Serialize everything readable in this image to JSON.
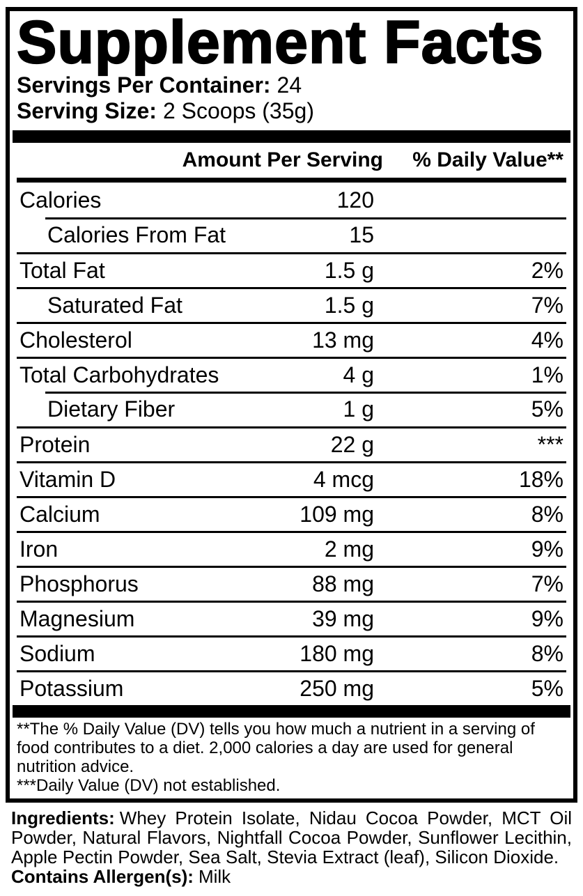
{
  "colors": {
    "ink": "#000000",
    "background": "#ffffff"
  },
  "panel": {
    "title": "Supplement Facts",
    "servings_per_container": {
      "label": "Servings Per Container:",
      "value": "24"
    },
    "serving_size": {
      "label": "Serving Size:",
      "value": "2 Scoops (35g)"
    },
    "columns": {
      "amount": "Amount Per Serving",
      "daily_value": "% Daily Value**"
    },
    "rows": [
      {
        "label": "Calories",
        "amount": "120",
        "dv": ""
      },
      {
        "label": "Calories From Fat",
        "amount": "15",
        "dv": ""
      },
      {
        "label": "Total Fat",
        "amount": "1.5 g",
        "dv": "2%"
      },
      {
        "label": "Saturated Fat",
        "amount": "1.5 g",
        "dv": "7%"
      },
      {
        "label": "Cholesterol",
        "amount": "13 mg",
        "dv": "4%"
      },
      {
        "label": "Total Carbohydrates",
        "amount": "4 g",
        "dv": "1%"
      },
      {
        "label": "Dietary Fiber",
        "amount": "1 g",
        "dv": "5%"
      },
      {
        "label": "Protein",
        "amount": "22 g",
        "dv": "***"
      },
      {
        "label": "Vitamin D",
        "amount": "4 mcg",
        "dv": "18%"
      },
      {
        "label": "Calcium",
        "amount": "109 mg",
        "dv": "8%"
      },
      {
        "label": "Iron",
        "amount": "2 mg",
        "dv": "9%"
      },
      {
        "label": "Phosphorus",
        "amount": "88 mg",
        "dv": "7%"
      },
      {
        "label": "Magnesium",
        "amount": "39 mg",
        "dv": "9%"
      },
      {
        "label": "Sodium",
        "amount": "180 mg",
        "dv": "8%"
      },
      {
        "label": "Potassium",
        "amount": "250 mg",
        "dv": "5%"
      }
    ],
    "footnotes": [
      "**The % Daily Value (DV) tells you how much a nutrient in a serving of",
      "food contributes to a diet. 2,000 calories a day are used for general",
      "nutrition advice.",
      "***Daily Value (DV) not established."
    ]
  },
  "ingredients": {
    "label": "Ingredients:",
    "lines": [
      "Whey Protein Isolate, Nidau Cocoa Powder, MCT Oil",
      "Powder, Natural Flavors, Nightfall Cocoa Powder, Sunflower Lecithin,",
      "Apple Pectin Powder, Sea Salt, Stevia Extract (leaf), Silicon Dioxide."
    ]
  },
  "allergen": {
    "label": "Contains Allergen(s):",
    "value": "Milk"
  }
}
